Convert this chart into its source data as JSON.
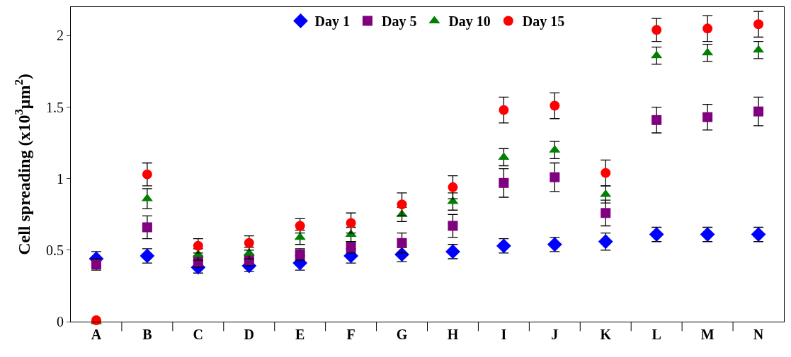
{
  "chart_data": {
    "type": "scatter",
    "ylabel": "Cell spreading (x10$^{3}$μm$^{2}$)",
    "categories": [
      "A",
      "B",
      "C",
      "D",
      "E",
      "F",
      "G",
      "H",
      "I",
      "J",
      "K",
      "L",
      "M",
      "N"
    ],
    "ylim": [
      0,
      2.2
    ],
    "yticks": [
      0,
      0.5,
      1,
      1.5,
      2
    ],
    "legend": "top",
    "series": [
      {
        "name": "Day 1",
        "color": "#0000ff",
        "marker": "diamond",
        "values": [
          0.44,
          0.46,
          0.38,
          0.39,
          0.41,
          0.46,
          0.47,
          0.49,
          0.53,
          0.54,
          0.56,
          0.61,
          0.61,
          0.61
        ],
        "errors": [
          0.05,
          0.05,
          0.04,
          0.04,
          0.05,
          0.05,
          0.05,
          0.05,
          0.05,
          0.05,
          0.06,
          0.05,
          0.05,
          0.05
        ]
      },
      {
        "name": "Day 5",
        "color": "#800080",
        "marker": "square",
        "values": [
          0.4,
          0.66,
          0.42,
          0.43,
          0.47,
          0.52,
          0.55,
          0.67,
          0.97,
          1.01,
          0.76,
          1.41,
          1.43,
          1.47
        ],
        "errors": [
          0.04,
          0.08,
          0.04,
          0.04,
          0.04,
          0.04,
          0.07,
          0.08,
          0.1,
          0.1,
          0.09,
          0.09,
          0.09,
          0.1
        ]
      },
      {
        "name": "Day 10",
        "color": "#008000",
        "marker": "triangle",
        "values": [
          0.0,
          0.86,
          0.47,
          0.48,
          0.59,
          0.61,
          0.75,
          0.84,
          1.15,
          1.2,
          0.89,
          1.86,
          1.88,
          1.9
        ],
        "errors": [
          null,
          0.07,
          0.04,
          0.04,
          0.05,
          0.05,
          0.05,
          0.06,
          0.06,
          0.06,
          0.06,
          0.06,
          0.06,
          0.06
        ]
      },
      {
        "name": "Day 15",
        "color": "#ff0000",
        "marker": "circle",
        "values": [
          0.01,
          1.03,
          0.53,
          0.55,
          0.67,
          0.69,
          0.82,
          0.94,
          1.48,
          1.51,
          1.04,
          2.04,
          2.05,
          2.08
        ],
        "errors": [
          null,
          0.08,
          0.05,
          0.05,
          0.05,
          0.07,
          0.08,
          0.08,
          0.09,
          0.09,
          0.09,
          0.08,
          0.09,
          0.09
        ]
      }
    ]
  }
}
